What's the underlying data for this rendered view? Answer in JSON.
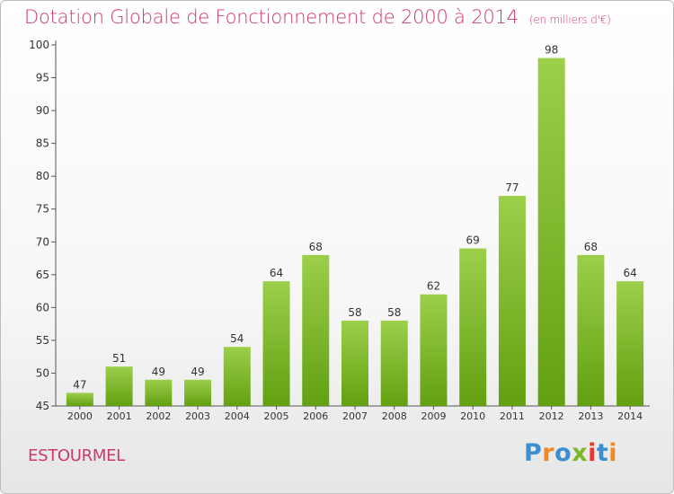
{
  "header": {
    "title": "Dotation Globale de Fonctionnement de 2000 à 2014",
    "unit": "(en milliers d'€)"
  },
  "footer": {
    "commune": "ESTOURMEL",
    "brand": "Proxiti"
  },
  "colors": {
    "bar_top": "#9ccf4a",
    "bar_bottom": "#62a011",
    "accent": "#d0386c"
  },
  "chart_data": {
    "type": "bar",
    "categories": [
      "2000",
      "2001",
      "2002",
      "2003",
      "2004",
      "2005",
      "2006",
      "2007",
      "2008",
      "2009",
      "2010",
      "2011",
      "2012",
      "2013",
      "2014"
    ],
    "values": [
      47,
      51,
      49,
      49,
      54,
      64,
      68,
      58,
      58,
      62,
      69,
      77,
      98,
      68,
      64
    ],
    "title": "Dotation Globale de Fonctionnement de 2000 à 2014",
    "subtitle": "(en milliers d'€)",
    "xlabel": "",
    "ylabel": "",
    "ylim": [
      45,
      100
    ],
    "yticks": [
      45,
      50,
      55,
      60,
      65,
      70,
      75,
      80,
      85,
      90,
      95,
      100
    ],
    "grid": false,
    "data_labels": true
  }
}
